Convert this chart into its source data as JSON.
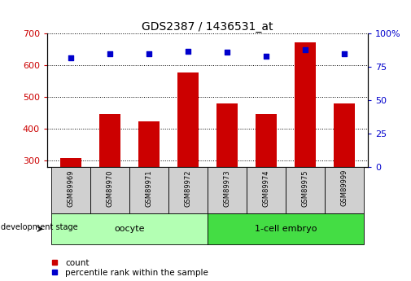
{
  "title": "GDS2387 / 1436531_at",
  "samples": [
    "GSM89969",
    "GSM89970",
    "GSM89971",
    "GSM89972",
    "GSM89973",
    "GSM89974",
    "GSM89975",
    "GSM89999"
  ],
  "counts": [
    310,
    447,
    425,
    578,
    480,
    448,
    672,
    480
  ],
  "percentiles": [
    82,
    85,
    85,
    87,
    86,
    83,
    88,
    85
  ],
  "ylim_left": [
    280,
    700
  ],
  "ylim_right": [
    0,
    100
  ],
  "yticks_left": [
    300,
    400,
    500,
    600,
    700
  ],
  "yticks_right": [
    0,
    25,
    50,
    75,
    100
  ],
  "groups": [
    {
      "label": "oocyte",
      "start": 0,
      "end": 4,
      "color": "#b3ffb3"
    },
    {
      "label": "1-cell embryo",
      "start": 4,
      "end": 8,
      "color": "#44dd44"
    }
  ],
  "bar_color": "#cc0000",
  "dot_color": "#0000cc",
  "bar_width": 0.55,
  "grid_color": "#000000",
  "background_color": "#ffffff",
  "label_box_color": "#d0d0d0",
  "dev_stage_label": "development stage",
  "legend_count": "count",
  "legend_percentile": "percentile rank within the sample",
  "title_fontsize": 10,
  "tick_fontsize": 8,
  "sample_fontsize": 6,
  "group_fontsize": 8,
  "legend_fontsize": 7.5
}
